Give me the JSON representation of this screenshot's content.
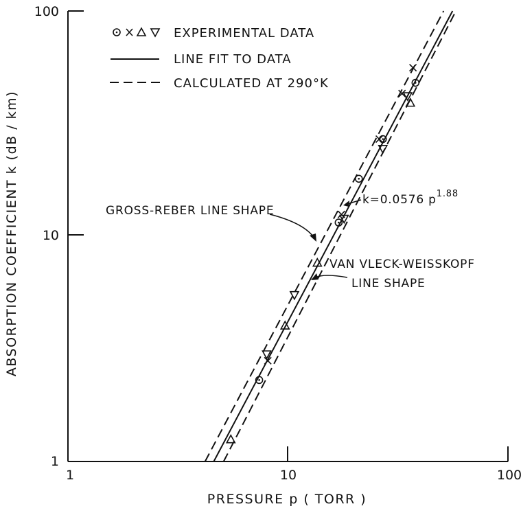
{
  "chart_data": {
    "type": "scatter",
    "title": "",
    "xlabel": "PRESSURE p ( TORR )",
    "ylabel": "ABSORPTION COEFFICIENT k (dB / km)",
    "x_scale": "log",
    "y_scale": "log",
    "xlim": [
      1,
      100
    ],
    "ylim": [
      1,
      100
    ],
    "x_ticks": [
      "1",
      "10",
      "100"
    ],
    "y_ticks": [
      "1",
      "10",
      "100"
    ],
    "grid": false,
    "legend_position": "top-left",
    "legend": [
      {
        "symbol": "⊙ × △ ▽",
        "label": "EXPERIMENTAL DATA"
      },
      {
        "symbol": "solid",
        "label": "LINE FIT TO DATA"
      },
      {
        "symbol": "dashed",
        "label": "CALCULATED AT 290°K"
      }
    ],
    "series": [
      {
        "marker": "circle-dot",
        "points": [
          [
            7.4,
            2.3
          ],
          [
            17,
            11.5
          ],
          [
            21,
            18
          ],
          [
            27,
            27
          ],
          [
            38,
            48
          ]
        ]
      },
      {
        "marker": "x",
        "points": [
          [
            8.1,
            2.8
          ],
          [
            17.5,
            12.5
          ],
          [
            26,
            27
          ],
          [
            33,
            43
          ],
          [
            37,
            56
          ]
        ]
      },
      {
        "marker": "triangle-up",
        "points": [
          [
            5.5,
            1.25
          ],
          [
            9.7,
            4.0
          ],
          [
            13.6,
            7.6
          ],
          [
            36,
            39
          ]
        ]
      },
      {
        "marker": "triangle-down",
        "points": [
          [
            8.0,
            3.0
          ],
          [
            10.7,
            5.5
          ],
          [
            18,
            12
          ],
          [
            27,
            24.5
          ],
          [
            35,
            42
          ]
        ]
      }
    ],
    "lines": [
      {
        "name": "LINE FIT TO DATA",
        "style": "solid",
        "formula": "k = 0.0576 p^1.88",
        "points": [
          [
            4.6,
            1.0
          ],
          [
            56,
            100
          ]
        ]
      },
      {
        "name": "GROSS-REBER LINE SHAPE",
        "style": "dashed",
        "points": [
          [
            4.2,
            1.0
          ],
          [
            51,
            100
          ]
        ]
      },
      {
        "name": "VAN VLECK-WEISSKOPF LINE SHAPE",
        "style": "dashed",
        "points": [
          [
            5.1,
            1.0
          ],
          [
            58,
            100
          ]
        ]
      }
    ],
    "annotations": {
      "formula": {
        "text": "k=0.0576 p",
        "exponent": "1.88"
      },
      "gross_reber": "GROSS-REBER LINE SHAPE",
      "vvw_line1": "VAN VLECK-WEISSKOPF",
      "vvw_line2": "LINE SHAPE"
    }
  }
}
